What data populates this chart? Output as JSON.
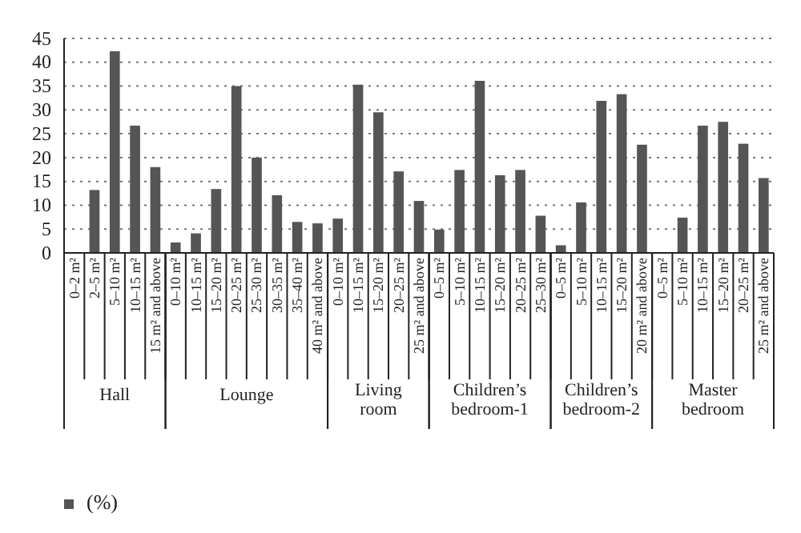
{
  "chart_data": {
    "type": "bar",
    "categories": [
      "0–2 m²",
      "2–5 m²",
      "5–10 m²",
      "10–15 m²",
      "15 m² and above",
      "0–10 m²",
      "10–15 m²",
      "15–20 m²",
      "20–25 m²",
      "25–30 m²",
      "30–35 m²",
      "35–40 m²",
      "40 m² and above",
      "0–10 m²",
      "10–15 m²",
      "15–20 m²",
      "20–25 m²",
      "25 m² and above",
      "0–5 m²",
      "5–10 m²",
      "10–15 m²",
      "15–20 m²",
      "20–25 m²",
      "25–30 m²",
      "0–5 m²",
      "5–10 m²",
      "10–15 m²",
      "15–20 m²",
      "20 m² and above",
      "0–5 m²",
      "5–10 m²",
      "10–15 m²",
      "15–20 m²",
      "20–25 m²",
      "25 m² and above"
    ],
    "series": [
      {
        "name": "Hall",
        "color": "#555555",
        "values": [
          0,
          13.2,
          42.3,
          26.7,
          18,
          null,
          null,
          null,
          null,
          null,
          null,
          null,
          null,
          null,
          null,
          null,
          null,
          null,
          null,
          null,
          null,
          null,
          null,
          null,
          null,
          null,
          null,
          null,
          null,
          null,
          null,
          null,
          null,
          null,
          null
        ]
      },
      {
        "name": "Lounge",
        "color": "#555555",
        "values": [
          null,
          null,
          null,
          null,
          null,
          2.2,
          4.1,
          13.4,
          35,
          20,
          12.1,
          6.5,
          6.2,
          null,
          null,
          null,
          null,
          null,
          null,
          null,
          null,
          null,
          null,
          null,
          null,
          null,
          null,
          null,
          null,
          null,
          null,
          null,
          null,
          null,
          null
        ]
      },
      {
        "name": "Living room",
        "color": "#555555",
        "values": [
          null,
          null,
          null,
          null,
          null,
          null,
          null,
          null,
          null,
          null,
          null,
          null,
          null,
          7.2,
          35.3,
          29.5,
          17.1,
          10.9,
          null,
          null,
          null,
          null,
          null,
          null,
          null,
          null,
          null,
          null,
          null,
          null,
          null,
          null,
          null,
          null,
          null
        ]
      },
      {
        "name": "Children’s bedroom-1",
        "color": "#555555",
        "values": [
          null,
          null,
          null,
          null,
          null,
          null,
          null,
          null,
          null,
          null,
          null,
          null,
          null,
          null,
          null,
          null,
          null,
          null,
          4.9,
          17.4,
          36.1,
          16.3,
          17.4,
          7.8,
          null,
          null,
          null,
          null,
          null,
          null,
          null,
          null,
          null,
          null,
          null
        ]
      },
      {
        "name": "Children’s bedroom-2",
        "color": "#555555",
        "values": [
          null,
          null,
          null,
          null,
          null,
          null,
          null,
          null,
          null,
          null,
          null,
          null,
          null,
          null,
          null,
          null,
          null,
          null,
          null,
          null,
          null,
          null,
          null,
          null,
          1.6,
          10.6,
          31.9,
          33.3,
          22.7,
          null,
          null,
          null,
          null,
          null,
          null
        ]
      },
      {
        "name": "Master bedroom",
        "color": "#555555",
        "values": [
          null,
          null,
          null,
          null,
          null,
          null,
          null,
          null,
          null,
          null,
          null,
          null,
          null,
          null,
          null,
          null,
          null,
          null,
          null,
          null,
          null,
          null,
          null,
          null,
          null,
          null,
          null,
          null,
          null,
          0,
          7.4,
          26.7,
          27.5,
          22.9,
          15.7
        ]
      }
    ],
    "ylim": [
      0,
      45
    ],
    "yticks": [
      0,
      5,
      10,
      15,
      20,
      25,
      30,
      35,
      40,
      45
    ],
    "grid": "y",
    "legend": "bottom left",
    "legend_title": "(%)"
  }
}
